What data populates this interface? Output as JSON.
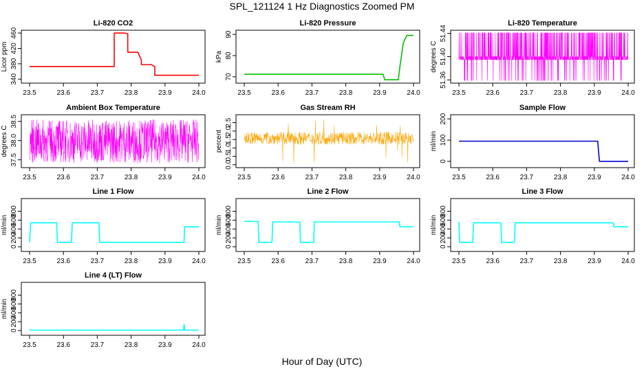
{
  "title": "SPL_121124  1 Hz Diagnostics Zoomed PM",
  "xlabel": "Hour of Day (UTC)",
  "chart_data": [
    {
      "id": "co2",
      "type": "line",
      "title": "Li-820 CO2",
      "ylabel": "Licor ppm",
      "color": "#ff0000",
      "xlim": [
        23.5,
        24.0
      ],
      "ylim": [
        335,
        462
      ],
      "xticks": [
        "23.5",
        "23.6",
        "23.7",
        "23.8",
        "23.9",
        "24.0"
      ],
      "yticks": [
        "340",
        "380",
        "420",
        "460"
      ],
      "x": [
        23.5,
        23.75,
        23.75,
        23.78,
        23.79,
        23.79,
        23.82,
        23.83,
        23.83,
        23.86,
        23.87,
        23.87,
        24.0
      ],
      "y": [
        373,
        373,
        460,
        460,
        458,
        410,
        410,
        390,
        378,
        378,
        372,
        350,
        350
      ]
    },
    {
      "id": "pressure",
      "type": "line",
      "title": "Li-820 Pressure",
      "ylabel": "kPa",
      "color": "#00c000",
      "xlim": [
        23.5,
        24.0
      ],
      "ylim": [
        68,
        91
      ],
      "xticks": [
        "23.5",
        "23.6",
        "23.7",
        "23.8",
        "23.9",
        "24.0"
      ],
      "yticks": [
        "70",
        "80",
        "90"
      ],
      "x": [
        23.5,
        23.91,
        23.915,
        23.955,
        23.96,
        23.97,
        23.98,
        24.0
      ],
      "y": [
        71.2,
        71.2,
        68.6,
        68.6,
        75,
        86,
        89.5,
        89.5
      ]
    },
    {
      "id": "temp",
      "type": "line",
      "title": "Li-820 Temperature",
      "ylabel": "degrees C",
      "color": "#ff00ff",
      "xlim": [
        23.5,
        24.0
      ],
      "ylim": [
        51.358,
        51.442
      ],
      "xticks": [
        "23.5",
        "23.6",
        "23.7",
        "23.8",
        "23.9",
        "24.0"
      ],
      "yticks": [
        "51.36",
        "51.40",
        "51.44"
      ],
      "x": [
        23.5,
        24.0
      ],
      "y": [
        51.395,
        51.395
      ]
    },
    {
      "id": "ambient",
      "type": "line",
      "title": "Ambient Box Temperature",
      "ylabel": "degrees C",
      "color": "#ff00ff",
      "xlim": [
        23.5,
        24.0
      ],
      "ylim": [
        37.35,
        38.62
      ],
      "xticks": [
        "23.5",
        "23.6",
        "23.7",
        "23.8",
        "23.9",
        "24.0"
      ],
      "yticks": [
        "37.5",
        "38.0",
        "38.5"
      ],
      "x": [
        23.5,
        24.0
      ],
      "y": [
        37.85,
        37.85
      ]
    },
    {
      "id": "rh",
      "type": "line",
      "title": "Gas Stream RH",
      "ylabel": "percent",
      "color": "#ffa500",
      "xlim": [
        23.5,
        24.0
      ],
      "ylim": [
        -0.05,
        2.85
      ],
      "xticks": [
        "23.5",
        "23.6",
        "23.7",
        "23.8",
        "23.9",
        "24.0"
      ],
      "yticks": [
        "0.0",
        "0.5",
        "1.0",
        "1.5",
        "2.0",
        "2.5"
      ],
      "x": [
        23.5,
        24.0
      ],
      "y": [
        1.55,
        1.55
      ]
    },
    {
      "id": "sample",
      "type": "line",
      "title": "Sample Flow",
      "ylabel": "ml/min",
      "color": "#0000cd",
      "xlim": [
        23.5,
        24.0
      ],
      "ylim": [
        -20,
        210
      ],
      "xticks": [
        "23.5",
        "23.6",
        "23.7",
        "23.8",
        "23.9",
        "24.0"
      ],
      "yticks": [
        "0",
        "100",
        "200"
      ],
      "x": [
        23.5,
        23.91,
        23.915,
        24.0
      ],
      "y": [
        95,
        95,
        0,
        0
      ]
    },
    {
      "id": "line1",
      "type": "line",
      "title": "Line 1 Flow",
      "ylabel": "ml/min",
      "color": "#00ffff",
      "xlim": [
        23.5,
        24.0
      ],
      "ylim": [
        -60,
        1040
      ],
      "xticks": [
        "23.5",
        "23.6",
        "23.7",
        "23.8",
        "23.9",
        "24.0"
      ],
      "yticks": [
        "0",
        "200",
        "400",
        "600",
        "800"
      ],
      "x": [
        23.5,
        23.503,
        23.58,
        23.582,
        23.624,
        23.626,
        23.705,
        23.707,
        23.956,
        23.958,
        24.0
      ],
      "y": [
        100,
        540,
        540,
        100,
        100,
        540,
        540,
        100,
        100,
        450,
        450
      ]
    },
    {
      "id": "line2",
      "type": "line",
      "title": "Line 2 Flow",
      "ylabel": "ml/min",
      "color": "#00ffff",
      "xlim": [
        23.5,
        24.0
      ],
      "ylim": [
        -60,
        1040
      ],
      "xticks": [
        "23.5",
        "23.6",
        "23.7",
        "23.8",
        "23.9",
        "24.0"
      ],
      "yticks": [
        "0",
        "200",
        "400",
        "600",
        "800"
      ],
      "x": [
        23.5,
        23.541,
        23.543,
        23.582,
        23.584,
        23.664,
        23.666,
        23.705,
        23.707,
        23.958,
        23.96,
        24.0
      ],
      "y": [
        570,
        570,
        100,
        100,
        560,
        560,
        100,
        100,
        560,
        560,
        450,
        450
      ]
    },
    {
      "id": "line3",
      "type": "line",
      "title": "Line 3 Flow",
      "ylabel": "ml/min",
      "color": "#00ffff",
      "xlim": [
        23.5,
        24.0
      ],
      "ylim": [
        -60,
        1040
      ],
      "xticks": [
        "23.5",
        "23.6",
        "23.7",
        "23.8",
        "23.9",
        "24.0"
      ],
      "yticks": [
        "0",
        "200",
        "400",
        "600",
        "800"
      ],
      "x": [
        23.5,
        23.502,
        23.541,
        23.543,
        23.624,
        23.626,
        23.664,
        23.666,
        23.956,
        23.958,
        24.0
      ],
      "y": [
        560,
        100,
        100,
        540,
        540,
        100,
        100,
        540,
        540,
        450,
        450
      ]
    },
    {
      "id": "line4",
      "type": "line",
      "title": "Line 4 (LT) Flow",
      "ylabel": "ml/min",
      "color": "#00ffff",
      "xlim": [
        23.5,
        24.0
      ],
      "ylim": [
        -60,
        1040
      ],
      "xticks": [
        "23.5",
        "23.6",
        "23.7",
        "23.8",
        "23.9",
        "24.0"
      ],
      "yticks": [
        "0",
        "200",
        "400",
        "600",
        "800"
      ],
      "x": [
        23.5,
        23.955,
        23.956,
        23.957,
        23.958,
        24.0
      ],
      "y": [
        10,
        10,
        130,
        130,
        10,
        10
      ]
    }
  ]
}
